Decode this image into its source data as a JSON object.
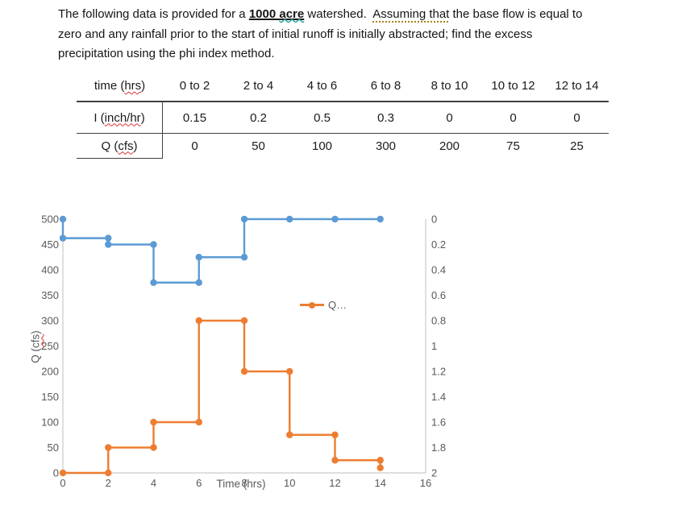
{
  "problem": {
    "s1": "The following data is provided for a ",
    "s2_bold": "1000 ",
    "s3_bold_flagged": "acre",
    "s4": " watershed.  ",
    "s5_grammar": "Assuming that",
    "s6": " the base flow is equal to",
    "line2": "zero and any rainfall prior to the start of initial runoff is initially abstracted; find the excess",
    "line3": "precipitation using the phi index method."
  },
  "table": {
    "header": {
      "label": {
        "text": "time (hrs)",
        "spellcheck": "hrs"
      },
      "cols": [
        "0 to 2",
        "2 to 4",
        "4 to 6",
        "6 to 8",
        "8 to 10",
        "10 to 12",
        "12 to 14"
      ]
    },
    "rows": [
      {
        "label": {
          "text": "I (inch/hr)",
          "spellcheck": "inch/hr"
        },
        "values": [
          "0.15",
          "0.2",
          "0.5",
          "0.3",
          "0",
          "0",
          "0"
        ]
      },
      {
        "label": {
          "text": "Q (cfs)",
          "spellcheck": "cfs"
        },
        "values": [
          "0",
          "50",
          "100",
          "300",
          "200",
          "75",
          "25"
        ]
      }
    ]
  },
  "chart_data": {
    "type": "line",
    "subtype": "step",
    "title": "",
    "grid": false,
    "x_axis": {
      "label": "Time (hrs)",
      "min": 0,
      "max": 16,
      "ticks": [
        0,
        2,
        4,
        6,
        8,
        10,
        12,
        14,
        16
      ]
    },
    "y_axis_left": {
      "label": "Q (cfs)",
      "spellcheck": "cfs",
      "min": 0,
      "max": 500,
      "ticks": [
        500,
        450,
        400,
        350,
        300,
        250,
        200,
        150,
        100,
        50,
        0
      ]
    },
    "y_axis_right": {
      "label": "",
      "min": 0,
      "max": 2,
      "inverted": true,
      "ticks": [
        "0",
        "0.2",
        "0.4",
        "0.6",
        "0.8",
        "1",
        "1.2",
        "1.4",
        "1.6",
        "1.8",
        "2"
      ]
    },
    "legend": {
      "entries": [
        {
          "label": "Q…",
          "color": "#ED7D31"
        }
      ],
      "position": "inside-center-right"
    },
    "colors": {
      "flow": "#ED7D31",
      "intensity": "#5B9BD5",
      "axis_text": "#595959",
      "axis_line": "#BFBFBF"
    },
    "series": [
      {
        "name": "I (inch/hr)",
        "axis": "right",
        "color": "#5B9BD5",
        "marker": "circle",
        "points": [
          [
            0,
            0
          ],
          [
            0,
            0.15
          ],
          [
            2,
            0.15
          ],
          [
            2,
            0.2
          ],
          [
            4,
            0.2
          ],
          [
            4,
            0.5
          ],
          [
            6,
            0.5
          ],
          [
            6,
            0.3
          ],
          [
            8,
            0.3
          ],
          [
            8,
            0
          ],
          [
            10,
            0
          ],
          [
            12,
            0
          ],
          [
            14,
            0
          ]
        ]
      },
      {
        "name": "Q (cfs)",
        "axis": "left",
        "color": "#ED7D31",
        "marker": "circle",
        "points": [
          [
            0,
            0
          ],
          [
            2,
            0
          ],
          [
            2,
            50
          ],
          [
            4,
            50
          ],
          [
            4,
            100
          ],
          [
            6,
            100
          ],
          [
            6,
            300
          ],
          [
            8,
            300
          ],
          [
            8,
            200
          ],
          [
            10,
            200
          ],
          [
            10,
            75
          ],
          [
            12,
            75
          ],
          [
            12,
            25
          ],
          [
            14,
            25
          ],
          [
            14,
            10
          ]
        ]
      }
    ]
  }
}
